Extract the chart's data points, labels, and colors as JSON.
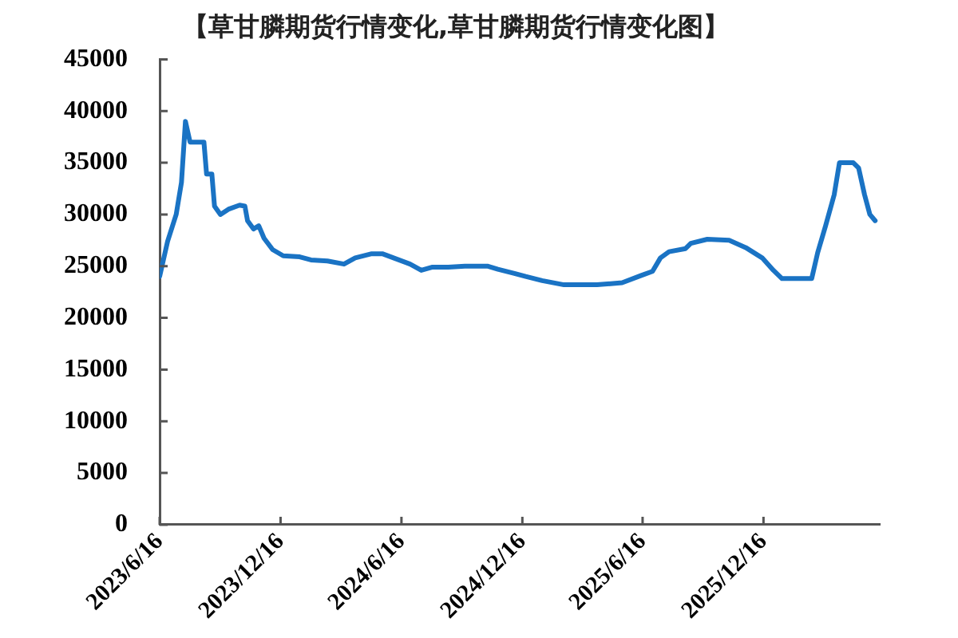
{
  "chart_data": {
    "type": "line",
    "title": "【草甘膦期货行情变化,草甘膦期货行情变化图】",
    "x": [
      "2023-06-16",
      "2023-06-28",
      "2023-07-11",
      "2023-07-19",
      "2023-07-25",
      "2023-08-01",
      "2023-08-22",
      "2023-08-26",
      "2023-09-03",
      "2023-09-07",
      "2023-09-16",
      "2023-09-28",
      "2023-10-15",
      "2023-10-23",
      "2023-10-27",
      "2023-11-05",
      "2023-11-13",
      "2023-11-21",
      "2023-12-04",
      "2023-12-20",
      "2024-01-14",
      "2024-01-31",
      "2024-02-25",
      "2024-03-21",
      "2024-04-07",
      "2024-05-02",
      "2024-05-18",
      "2024-06-04",
      "2024-06-29",
      "2024-07-16",
      "2024-08-01",
      "2024-08-26",
      "2024-09-20",
      "2024-10-24",
      "2024-11-09",
      "2024-12-04",
      "2024-12-21",
      "2025-01-15",
      "2025-02-17",
      "2025-04-08",
      "2025-05-16",
      "2025-06-14",
      "2025-07-01",
      "2025-07-13",
      "2025-07-26",
      "2025-08-20",
      "2025-08-28",
      "2025-09-22",
      "2025-10-25",
      "2025-11-19",
      "2025-12-14",
      "2025-12-31",
      "2026-01-13",
      "2026-02-27",
      "2026-03-08",
      "2026-03-20",
      "2026-04-02",
      "2026-04-10",
      "2026-05-01",
      "2026-05-09",
      "2026-05-18",
      "2026-05-26",
      "2026-06-03"
    ],
    "series": [
      {
        "color": "#1a73c4",
        "values": [
          24000,
          27400,
          30000,
          33100,
          39000,
          37000,
          37000,
          33900,
          33900,
          30800,
          30000,
          30500,
          30900,
          30800,
          29400,
          28600,
          28900,
          27700,
          26600,
          26000,
          25900,
          25600,
          25500,
          25200,
          25800,
          26200,
          26200,
          25800,
          25200,
          24600,
          24900,
          24900,
          25000,
          25000,
          24700,
          24300,
          24000,
          23600,
          23200,
          23200,
          23400,
          24100,
          24500,
          25800,
          26400,
          26700,
          27200,
          27600,
          27500,
          26800,
          25800,
          24600,
          23800,
          23800,
          26300,
          28900,
          31900,
          35000,
          35000,
          34500,
          31900,
          30000,
          29400
        ]
      }
    ],
    "xlim": [
      "2023-06-16",
      "2026-06-10"
    ],
    "xticks": [
      {
        "value": "2023-06-16",
        "label": "2023/6/16"
      },
      {
        "value": "2023-12-16",
        "label": "2023/12/16"
      },
      {
        "value": "2024-06-16",
        "label": "2024/6/16"
      },
      {
        "value": "2024-12-16",
        "label": "2024/12/16"
      },
      {
        "value": "2025-06-16",
        "label": "2025/6/16"
      },
      {
        "value": "2025-12-16",
        "label": "2025/12/16"
      }
    ],
    "ylim": [
      0,
      45000
    ],
    "yticks": [
      0,
      5000,
      10000,
      15000,
      20000,
      25000,
      30000,
      35000,
      40000,
      45000
    ]
  }
}
